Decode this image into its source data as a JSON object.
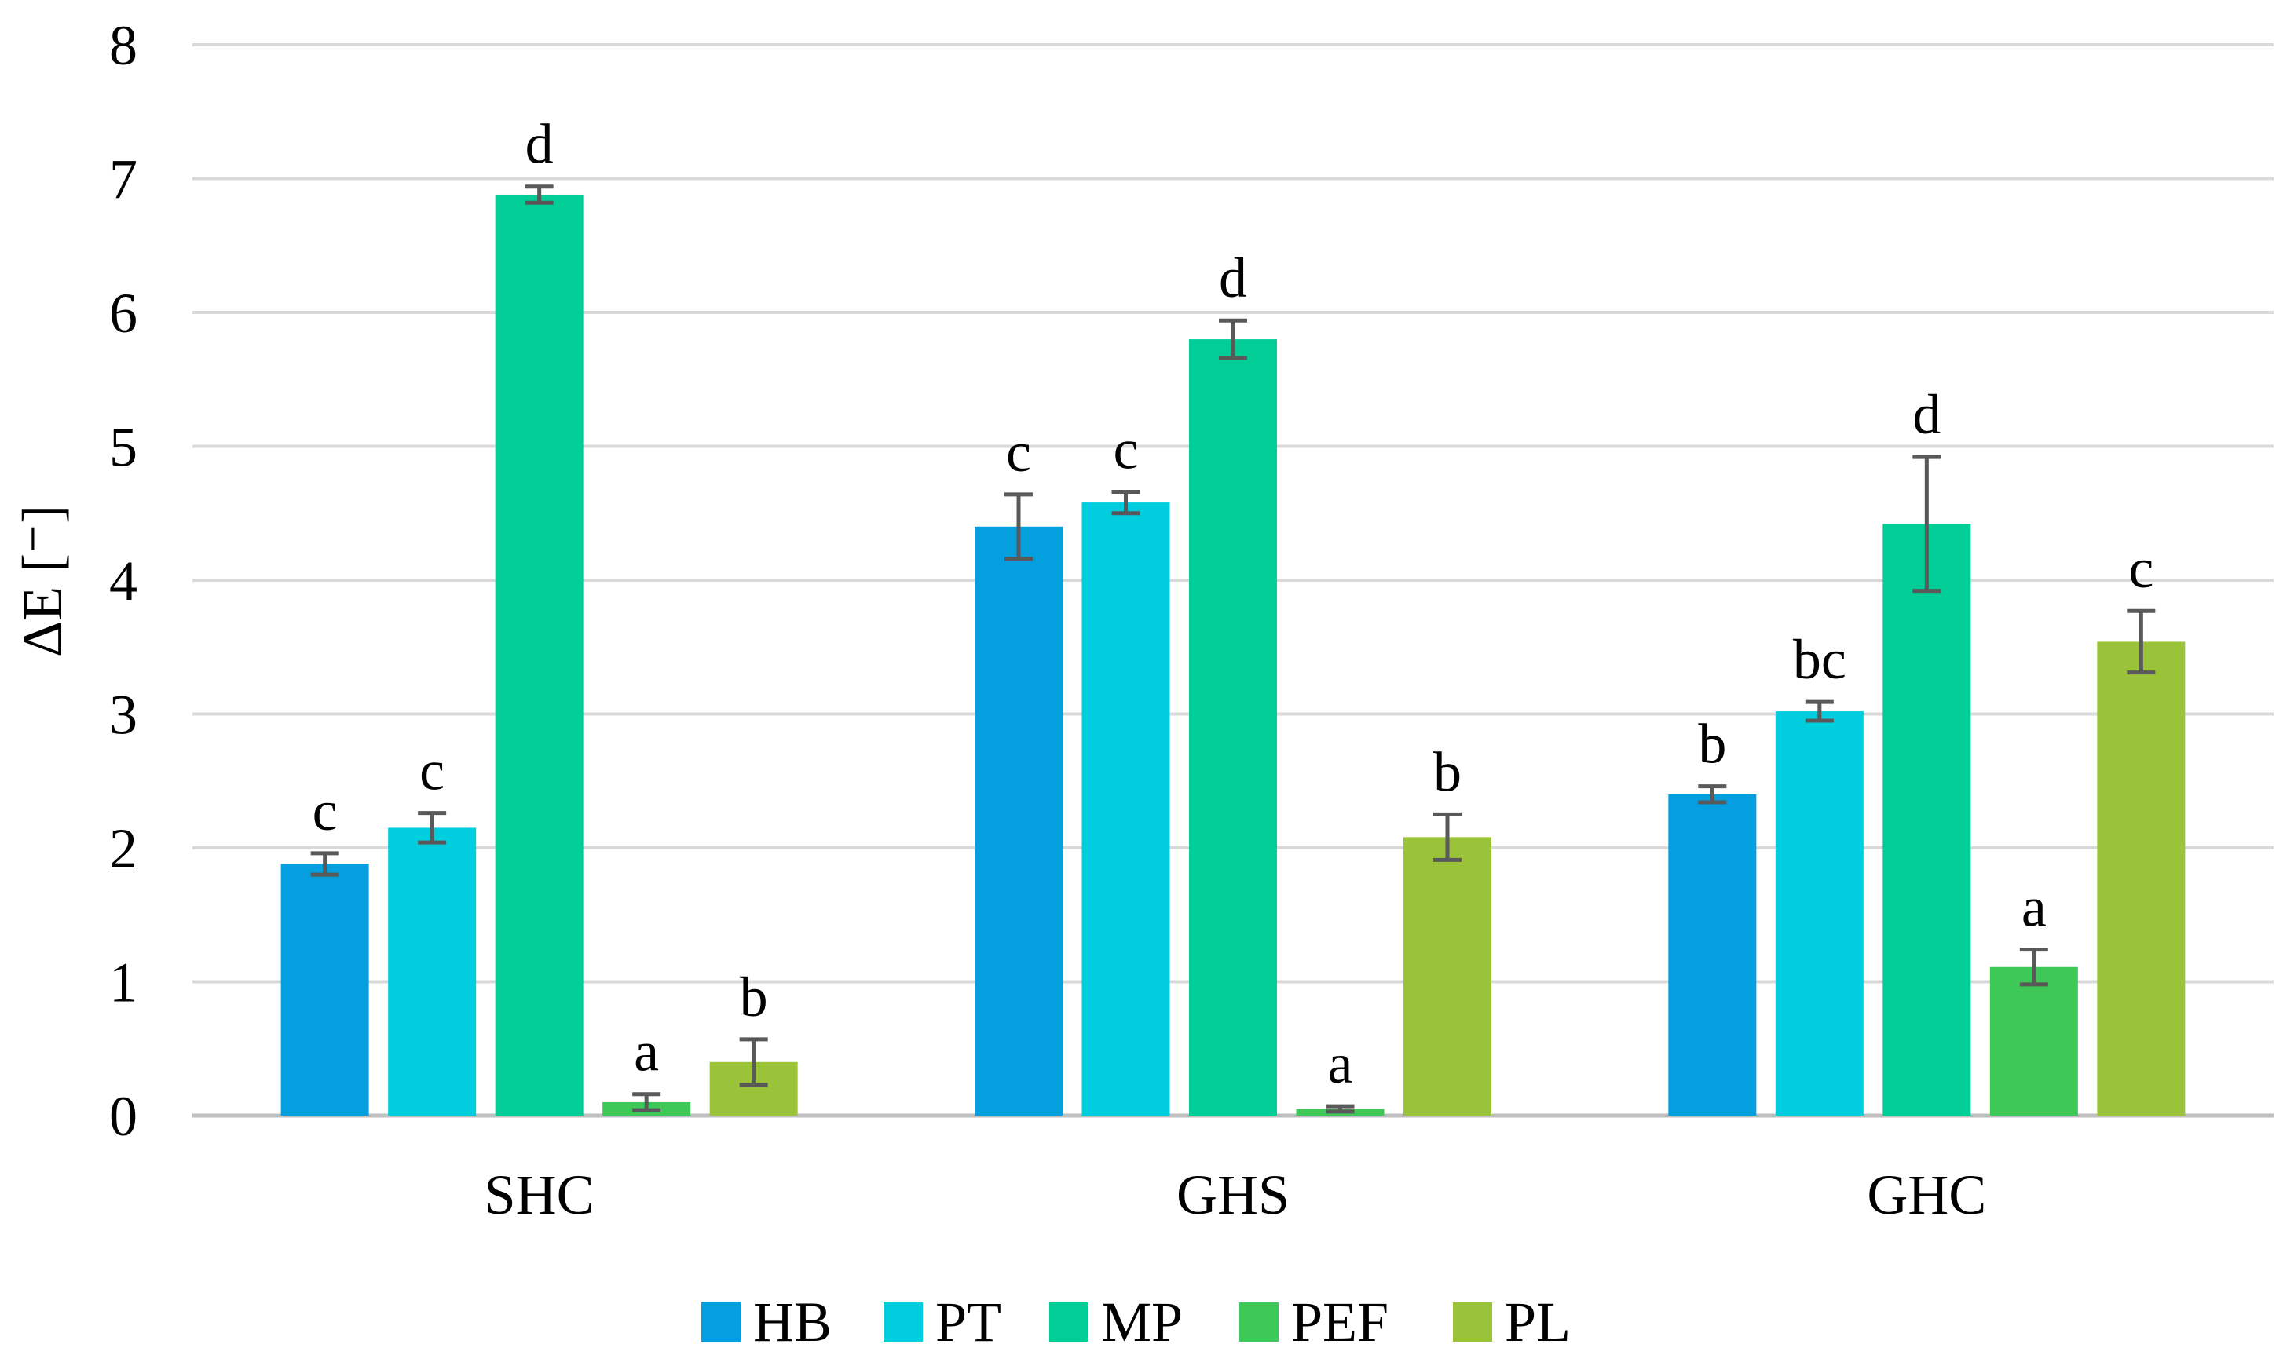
{
  "chart_data": {
    "type": "bar",
    "title": "",
    "xlabel": "",
    "ylabel": "ΔE [⁻]",
    "ylim": [
      0,
      8
    ],
    "yticks": [
      0,
      1,
      2,
      3,
      4,
      5,
      6,
      7,
      8
    ],
    "grid": true,
    "legend_position": "bottom",
    "categories": [
      "SHC",
      "GHS",
      "GHC"
    ],
    "series": [
      {
        "name": "HB",
        "color": "#039FDF",
        "values": [
          1.88,
          4.4,
          2.4
        ],
        "errors": [
          0.08,
          0.24,
          0.06
        ],
        "labels": [
          "c",
          "c",
          "b"
        ]
      },
      {
        "name": "PT",
        "color": "#00CDDD",
        "values": [
          2.15,
          4.58,
          3.02
        ],
        "errors": [
          0.11,
          0.08,
          0.07
        ],
        "labels": [
          "c",
          "c",
          "bc"
        ]
      },
      {
        "name": "MP",
        "color": "#00CE96",
        "values": [
          6.88,
          5.8,
          4.42
        ],
        "errors": [
          0.06,
          0.14,
          0.5
        ],
        "labels": [
          "d",
          "d",
          "d"
        ]
      },
      {
        "name": "PEF",
        "color": "#3DC857",
        "values": [
          0.1,
          0.05,
          1.11
        ],
        "errors": [
          0.06,
          0.02,
          0.13
        ],
        "labels": [
          "a",
          "a",
          "a"
        ]
      },
      {
        "name": "PL",
        "color": "#9BC33A",
        "values": [
          0.4,
          2.08,
          3.54
        ],
        "errors": [
          0.17,
          0.17,
          0.23
        ],
        "labels": [
          "b",
          "b",
          "c"
        ]
      }
    ]
  }
}
